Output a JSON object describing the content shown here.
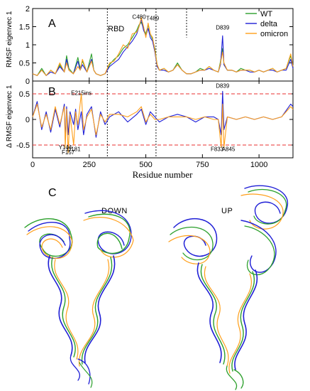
{
  "panel_a_letter": "A",
  "panel_b_letter": "B",
  "panel_c_letter": "C",
  "label_down": "DOWN",
  "label_up": "UP",
  "colors": {
    "WT": "#2ca02c",
    "delta": "#1f1fd6",
    "omicron": "#ff9f1a",
    "ref_line": "#e83030",
    "frame": "#000000"
  },
  "structure_c_note": "cartoon renderings of protein structures in DOWN and UP conformations",
  "chart_data": [
    {
      "type": "line",
      "panel": "A",
      "ylabel": "RMSF eigenvec 1",
      "xlabel": "",
      "xlim": [
        0,
        1150
      ],
      "ylim": [
        0,
        2
      ],
      "yticks": [
        0,
        0.5,
        1,
        1.5,
        2
      ],
      "yticklabels": [
        "0",
        "0.5",
        "1",
        "1.5",
        "2"
      ],
      "xticks": [
        0,
        250,
        500,
        750,
        1000
      ],
      "legend_placement": "top-right",
      "region_label": "RBD",
      "vlines": [
        330,
        545,
        680
      ],
      "annotations": [
        {
          "text": "C480",
          "x": 470,
          "y": 1.72
        },
        {
          "text": "T489",
          "x": 530,
          "y": 1.68
        },
        {
          "text": "D839",
          "x": 839,
          "y": 1.42
        }
      ],
      "x": [
        0,
        20,
        40,
        60,
        80,
        100,
        120,
        140,
        150,
        160,
        180,
        200,
        210,
        220,
        240,
        260,
        270,
        280,
        300,
        320,
        340,
        360,
        380,
        400,
        420,
        440,
        460,
        470,
        480,
        490,
        500,
        510,
        520,
        530,
        540,
        550,
        560,
        580,
        600,
        620,
        640,
        660,
        680,
        700,
        720,
        740,
        760,
        780,
        800,
        820,
        830,
        839,
        845,
        860,
        880,
        900,
        920,
        940,
        960,
        980,
        1000,
        1020,
        1040,
        1060,
        1080,
        1100,
        1120,
        1140,
        1150
      ],
      "series": [
        {
          "name": "WT",
          "values": [
            0.2,
            0.15,
            0.35,
            0.15,
            0.3,
            0.2,
            0.45,
            0.25,
            0.7,
            0.35,
            0.2,
            0.65,
            0.35,
            0.55,
            0.25,
            0.75,
            0.3,
            0.2,
            0.15,
            0.2,
            0.45,
            0.6,
            0.7,
            0.9,
            1.0,
            1.2,
            1.4,
            1.55,
            1.62,
            1.45,
            1.3,
            1.55,
            1.3,
            1.15,
            0.9,
            0.45,
            0.3,
            0.35,
            0.25,
            0.3,
            0.5,
            0.3,
            0.2,
            0.2,
            0.25,
            0.35,
            0.3,
            0.4,
            0.3,
            0.25,
            0.55,
            0.9,
            0.45,
            0.3,
            0.3,
            0.25,
            0.35,
            0.3,
            0.3,
            0.25,
            0.3,
            0.25,
            0.3,
            0.35,
            0.25,
            0.3,
            0.35,
            0.7,
            0.4
          ]
        },
        {
          "name": "delta",
          "values": [
            0.2,
            0.15,
            0.3,
            0.15,
            0.25,
            0.2,
            0.4,
            0.25,
            0.6,
            0.3,
            0.2,
            0.55,
            0.3,
            0.45,
            0.25,
            0.6,
            0.3,
            0.2,
            0.15,
            0.2,
            0.4,
            0.5,
            0.6,
            0.8,
            0.95,
            1.1,
            1.3,
            1.5,
            1.7,
            1.4,
            1.25,
            1.45,
            1.2,
            1.1,
            0.8,
            0.4,
            0.3,
            0.3,
            0.25,
            0.3,
            0.45,
            0.3,
            0.2,
            0.2,
            0.25,
            0.3,
            0.3,
            0.35,
            0.3,
            0.25,
            0.45,
            1.25,
            0.45,
            0.3,
            0.3,
            0.25,
            0.3,
            0.3,
            0.25,
            0.25,
            0.3,
            0.25,
            0.3,
            0.3,
            0.25,
            0.3,
            0.3,
            0.6,
            0.35
          ]
        },
        {
          "name": "omicron",
          "values": [
            0.2,
            0.15,
            0.3,
            0.15,
            0.3,
            0.2,
            0.5,
            0.25,
            0.5,
            0.3,
            0.2,
            0.4,
            0.3,
            0.6,
            0.25,
            0.55,
            0.3,
            0.2,
            0.15,
            0.2,
            0.5,
            0.55,
            0.75,
            1.0,
            0.9,
            1.3,
            1.35,
            1.5,
            1.75,
            1.5,
            1.2,
            1.6,
            1.3,
            1.2,
            0.85,
            0.45,
            0.3,
            0.35,
            0.25,
            0.3,
            0.45,
            0.3,
            0.2,
            0.2,
            0.25,
            0.3,
            0.3,
            0.4,
            0.3,
            0.25,
            0.5,
            0.8,
            0.5,
            0.3,
            0.3,
            0.25,
            0.3,
            0.3,
            0.3,
            0.25,
            0.3,
            0.25,
            0.3,
            0.35,
            0.25,
            0.3,
            0.35,
            0.75,
            0.4
          ]
        }
      ]
    },
    {
      "type": "line",
      "panel": "B",
      "ylabel": "Δ RMSF eigenvec 1",
      "xlabel": "Residue number",
      "xlim": [
        0,
        1150
      ],
      "ylim": [
        -0.75,
        0.75
      ],
      "yticks": [
        -0.5,
        0,
        0.5
      ],
      "yticklabels": [
        "-0.5",
        "0",
        "0.5"
      ],
      "xticks": [
        0,
        250,
        500,
        750,
        1000
      ],
      "xticklabels": [
        "0",
        "250",
        "500",
        "750",
        "1000"
      ],
      "hlines": [
        -0.5,
        0.5
      ],
      "vlines": [
        330,
        545
      ],
      "annotations": [
        {
          "text": "E215ins",
          "x": 215,
          "y": 0.48
        },
        {
          "text": "D839",
          "x": 839,
          "y": 0.62
        },
        {
          "text": "Y144",
          "x": 144,
          "y": -0.58
        },
        {
          "text": "F157",
          "x": 157,
          "y": -0.68
        },
        {
          "text": "G181",
          "x": 181,
          "y": -0.62
        },
        {
          "text": "F833",
          "x": 815,
          "y": -0.62
        },
        {
          "text": "A845",
          "x": 865,
          "y": -0.62
        }
      ],
      "x": [
        0,
        20,
        40,
        60,
        80,
        100,
        120,
        140,
        144,
        150,
        157,
        165,
        181,
        190,
        200,
        215,
        225,
        240,
        260,
        280,
        300,
        320,
        340,
        380,
        420,
        460,
        480,
        500,
        520,
        540,
        560,
        600,
        640,
        680,
        720,
        760,
        800,
        820,
        833,
        839,
        845,
        860,
        900,
        940,
        980,
        1020,
        1060,
        1100,
        1140,
        1150
      ],
      "series": [
        {
          "name": "delta",
          "values": [
            0.05,
            0.35,
            -0.2,
            0.15,
            -0.25,
            0.2,
            -0.15,
            0.3,
            -0.4,
            0.25,
            -0.3,
            0.15,
            -0.1,
            0.2,
            -0.2,
            0.15,
            -0.3,
            0.1,
            0.25,
            -0.35,
            0.15,
            -0.1,
            0.05,
            0.15,
            -0.05,
            0.1,
            0.2,
            -0.1,
            0.15,
            0.05,
            -0.05,
            0.05,
            0.1,
            0.05,
            -0.05,
            0.05,
            0.05,
            0.0,
            -0.3,
            0.55,
            -0.2,
            0.05,
            0.0,
            0.05,
            0.0,
            0.05,
            0.0,
            0.05,
            0.3,
            0.25
          ]
        },
        {
          "name": "omicron",
          "values": [
            0.05,
            0.3,
            -0.15,
            0.1,
            -0.2,
            0.25,
            -0.1,
            0.25,
            -0.55,
            0.2,
            -0.65,
            0.1,
            -0.5,
            0.15,
            -0.1,
            0.5,
            -0.2,
            0.05,
            0.2,
            -0.3,
            0.1,
            -0.05,
            0.1,
            0.1,
            0.05,
            0.15,
            0.25,
            -0.05,
            0.1,
            0.0,
            0.0,
            0.05,
            0.05,
            0.05,
            0.0,
            0.05,
            0.0,
            0.0,
            -0.55,
            0.3,
            -0.55,
            0.05,
            0.0,
            0.05,
            0.0,
            0.05,
            0.0,
            0.05,
            0.25,
            0.2
          ]
        }
      ]
    }
  ]
}
